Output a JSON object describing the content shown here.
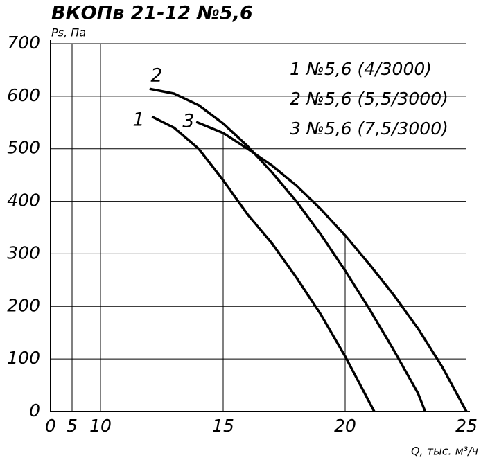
{
  "chart_data": {
    "type": "line",
    "title": "ВКОПв 21-12 №5,6",
    "y_label": "Ps, Па",
    "x_label": "Q, тыс. м³/ч",
    "xlim": [
      0,
      25
    ],
    "xticks": [
      0,
      5,
      10,
      15,
      20,
      25
    ],
    "ylim": [
      0,
      700
    ],
    "yticks": [
      0,
      100,
      200,
      300,
      400,
      500,
      600,
      700
    ],
    "grid": true,
    "annotations": [
      "1",
      "2",
      "3"
    ],
    "series": [
      {
        "name": "1 №5,6 (4/3000)",
        "color": "#000000",
        "x": [
          12.1,
          13,
          14,
          15,
          16,
          17,
          18,
          19,
          20,
          21.2
        ],
        "values": [
          561,
          540,
          500,
          440,
          375,
          320,
          255,
          185,
          105,
          0
        ]
      },
      {
        "name": "2 №5,6 (5,5/3000)",
        "color": "#000000",
        "x": [
          12,
          13,
          14,
          15,
          16,
          17,
          18,
          19,
          20,
          21,
          22,
          23,
          23.3
        ],
        "values": [
          614,
          605,
          583,
          548,
          505,
          455,
          400,
          337,
          268,
          195,
          117,
          35,
          0
        ]
      },
      {
        "name": "3 №5,6 (7,5/3000)",
        "color": "#000000",
        "x": [
          13.9,
          15,
          16,
          17,
          18,
          19,
          20,
          21,
          22,
          23,
          24,
          25
        ],
        "values": [
          551,
          530,
          500,
          468,
          430,
          385,
          335,
          280,
          222,
          158,
          85,
          0
        ]
      }
    ]
  }
}
